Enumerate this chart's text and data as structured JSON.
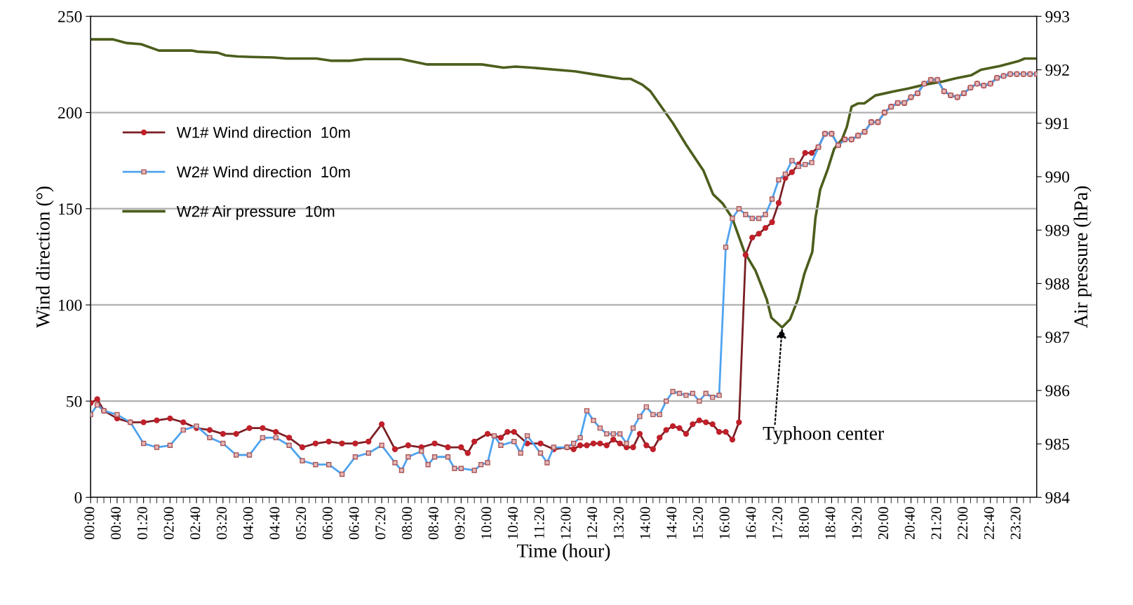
{
  "chart_data": {
    "type": "line",
    "xlabel": "Time (hour)",
    "ylabel": "Wind direction (°)",
    "y2label": "Air pressure (hPa)",
    "xlim": [
      0,
      23.8333
    ],
    "ylim": [
      0,
      250
    ],
    "yticks": [
      0,
      50,
      100,
      150,
      200,
      250
    ],
    "y2lim": [
      984,
      993
    ],
    "y2ticks": [
      984,
      985,
      986,
      987,
      988,
      989,
      990,
      991,
      992,
      993
    ],
    "xticks": [
      {
        "value": 0,
        "label": "00:00"
      },
      {
        "value": 0.6667,
        "label": "00:40"
      },
      {
        "value": 1.3333,
        "label": "01:20"
      },
      {
        "value": 2,
        "label": "02:00"
      },
      {
        "value": 2.6667,
        "label": "02:40"
      },
      {
        "value": 3.3333,
        "label": "03:20"
      },
      {
        "value": 4,
        "label": "04:00"
      },
      {
        "value": 4.6667,
        "label": "04:40"
      },
      {
        "value": 5.3333,
        "label": "05:20"
      },
      {
        "value": 6,
        "label": "06:00"
      },
      {
        "value": 6.6667,
        "label": "06:40"
      },
      {
        "value": 7.3333,
        "label": "07:20"
      },
      {
        "value": 8,
        "label": "08:00"
      },
      {
        "value": 8.6667,
        "label": "08:40"
      },
      {
        "value": 9.3333,
        "label": "09:20"
      },
      {
        "value": 10,
        "label": "10:00"
      },
      {
        "value": 10.6667,
        "label": "10:40"
      },
      {
        "value": 11.3333,
        "label": "11:20"
      },
      {
        "value": 12,
        "label": "12:00"
      },
      {
        "value": 12.6667,
        "label": "12:40"
      },
      {
        "value": 13.3333,
        "label": "13:20"
      },
      {
        "value": 14,
        "label": "14:00"
      },
      {
        "value": 14.6667,
        "label": "14:40"
      },
      {
        "value": 15.3333,
        "label": "15:20"
      },
      {
        "value": 16,
        "label": "16:00"
      },
      {
        "value": 16.6667,
        "label": "16:40"
      },
      {
        "value": 17.3333,
        "label": "17:20"
      },
      {
        "value": 18,
        "label": "18:00"
      },
      {
        "value": 18.6667,
        "label": "18:40"
      },
      {
        "value": 19.3333,
        "label": "19:20"
      },
      {
        "value": 20,
        "label": "20:00"
      },
      {
        "value": 20.6667,
        "label": "20:40"
      },
      {
        "value": 21.3333,
        "label": "21:20"
      },
      {
        "value": 22,
        "label": "22:00"
      },
      {
        "value": 22.6667,
        "label": "22:40"
      },
      {
        "value": 23.3333,
        "label": "23:20"
      }
    ],
    "grid": "y",
    "legend": "left",
    "annotations": [
      {
        "text": "Typhoon center",
        "x": 17.42,
        "y": 88
      }
    ],
    "series": [
      {
        "name": "W1# Wind direction  10m",
        "color": "#7a1f24",
        "marker": "circle",
        "x": [
          0,
          0.1667,
          0.3333,
          0.6667,
          1,
          1.3333,
          1.6667,
          2,
          2.3333,
          2.6667,
          3,
          3.3333,
          3.6667,
          4,
          4.3333,
          4.6667,
          5,
          5.3333,
          5.6667,
          6,
          6.3333,
          6.6667,
          7,
          7.3333,
          7.6667,
          8,
          8.3333,
          8.6667,
          9,
          9.3333,
          9.5,
          9.6667,
          10,
          10.3333,
          10.5,
          10.6667,
          11,
          11.3333,
          11.6667,
          12,
          12.1667,
          12.3333,
          12.5,
          12.6667,
          12.8333,
          13,
          13.1667,
          13.3333,
          13.5,
          13.6667,
          13.8333,
          14,
          14.1667,
          14.3333,
          14.5,
          14.6667,
          14.8333,
          15,
          15.1667,
          15.3333,
          15.5,
          15.6667,
          15.8333,
          16,
          16.1667,
          16.3333,
          16.5,
          16.6667,
          16.8333,
          17,
          17.1667,
          17.3333,
          17.5,
          17.6667,
          17.8333,
          18,
          18.1667,
          18.3333,
          18.5,
          18.6667,
          18.8333,
          19,
          19.1667,
          19.3333,
          19.5,
          19.6667,
          19.8333,
          20,
          20.1667,
          20.3333,
          20.5,
          20.6667,
          20.8333,
          21,
          21.1667,
          21.3333,
          21.5,
          21.6667,
          21.8333,
          22,
          22.1667,
          22.3333,
          22.5,
          22.6667,
          22.8333,
          23,
          23.1667,
          23.3333,
          23.5,
          23.6667,
          23.8333
        ],
        "values": [
          49,
          51,
          45,
          41,
          39,
          39,
          40,
          41,
          39,
          36,
          35,
          33,
          33,
          36,
          36,
          34,
          31,
          26,
          28,
          29,
          28,
          28,
          29,
          38,
          25,
          27,
          26,
          28,
          26,
          26,
          23,
          29,
          33,
          31,
          34,
          34,
          28,
          28,
          25,
          26,
          25,
          27,
          27,
          28,
          28,
          27,
          30,
          28,
          26,
          26,
          33,
          27,
          25,
          31,
          35,
          37,
          36,
          33,
          38,
          40,
          39,
          38,
          34,
          34,
          30,
          39,
          126,
          135,
          137,
          140,
          143,
          153,
          166,
          169,
          173,
          179,
          179,
          182,
          189,
          189,
          183,
          186,
          186,
          188,
          190,
          195,
          195,
          200,
          203,
          205,
          205,
          208,
          210,
          215,
          217,
          217,
          211,
          209,
          208,
          210,
          213,
          215,
          214,
          215,
          218,
          219,
          220,
          220,
          220,
          220,
          220
        ]
      },
      {
        "name": "W2# Wind direction  10m",
        "color": "#4fa3f0",
        "marker": "square",
        "x": [
          0,
          0.1667,
          0.3333,
          0.6667,
          1,
          1.3333,
          1.6667,
          2,
          2.3333,
          2.6667,
          3,
          3.3333,
          3.6667,
          4,
          4.3333,
          4.6667,
          5,
          5.3333,
          5.6667,
          6,
          6.3333,
          6.6667,
          7,
          7.3333,
          7.6667,
          7.8333,
          8,
          8.3333,
          8.5,
          8.6667,
          9,
          9.1667,
          9.3333,
          9.6667,
          9.8333,
          10,
          10.1667,
          10.3333,
          10.6667,
          10.8333,
          11,
          11.3333,
          11.5,
          11.6667,
          12,
          12.1667,
          12.3333,
          12.5,
          12.6667,
          12.8333,
          13,
          13.1667,
          13.3333,
          13.5,
          13.6667,
          13.8333,
          14,
          14.1667,
          14.3333,
          14.5,
          14.6667,
          14.8333,
          15,
          15.1667,
          15.3333,
          15.5,
          15.6667,
          15.8333,
          16,
          16.1667,
          16.3333,
          16.5,
          16.6667,
          16.8333,
          17,
          17.1667,
          17.3333,
          17.5,
          17.6667,
          17.8333,
          18,
          18.1667,
          18.3333,
          18.5,
          18.6667,
          18.8333,
          19,
          19.1667,
          19.3333,
          19.5,
          19.6667,
          19.8333,
          20,
          20.1667,
          20.3333,
          20.5,
          20.6667,
          20.8333,
          21,
          21.1667,
          21.3333,
          21.5,
          21.6667,
          21.8333,
          22,
          22.1667,
          22.3333,
          22.5,
          22.6667,
          22.8333,
          23,
          23.1667,
          23.3333,
          23.5,
          23.6667,
          23.8333
        ],
        "values": [
          43,
          48,
          45,
          43,
          39,
          28,
          26,
          27,
          35,
          37,
          31,
          28,
          22,
          22,
          31,
          31,
          27,
          19,
          17,
          17,
          12,
          21,
          23,
          27,
          18,
          14,
          21,
          24,
          17,
          21,
          21,
          15,
          15,
          14,
          17,
          18,
          32,
          27,
          29,
          23,
          32,
          23,
          18,
          26,
          26,
          28,
          31,
          45,
          40,
          36,
          33,
          33,
          33,
          28,
          36,
          42,
          47,
          43,
          43,
          50,
          55,
          54,
          53,
          54,
          50,
          54,
          52,
          53,
          130,
          145,
          150,
          147,
          145,
          145,
          147,
          155,
          165,
          168,
          175,
          172,
          173,
          174,
          182,
          189,
          189,
          183,
          186,
          186,
          188,
          190,
          195,
          195,
          200,
          203,
          205,
          205,
          208,
          210,
          215,
          217,
          217,
          211,
          209,
          208,
          210,
          213,
          215,
          214,
          215,
          218,
          219,
          220,
          220,
          220,
          220,
          220
        ]
      },
      {
        "name": "W2# Air pressure  10m",
        "color": "#4b5e1c",
        "marker": "none",
        "axis": "y2",
        "x": [
          0,
          0.55,
          0.91,
          1.27,
          1.72,
          2.54,
          2.69,
          3.2,
          3.4,
          3.7,
          4.06,
          4.62,
          4.93,
          5.69,
          6.05,
          6.55,
          6.9,
          7.82,
          8.48,
          9.85,
          10.4,
          10.7,
          11.1,
          12.2,
          12.8,
          13.4,
          13.6,
          13.9,
          14.1,
          14.67,
          15,
          15.44,
          15.68,
          15.92,
          16.16,
          16.47,
          16.75,
          17.03,
          17.15,
          17.42,
          17.62,
          17.82,
          17.98,
          18.18,
          18.26,
          18.38,
          18.57,
          18.73,
          18.93,
          19.05,
          19.17,
          19.33,
          19.49,
          19.77,
          20.2,
          20.6,
          21,
          21.47,
          21.79,
          22.19,
          22.43,
          22.9,
          23.37,
          23.53,
          23.8333
        ],
        "values": [
          992.57,
          992.57,
          992.5,
          992.48,
          992.36,
          992.36,
          992.34,
          992.32,
          992.27,
          992.25,
          992.24,
          992.23,
          992.21,
          992.21,
          992.17,
          992.17,
          992.2,
          992.2,
          992.1,
          992.1,
          992.04,
          992.06,
          992.04,
          991.97,
          991.9,
          991.83,
          991.83,
          991.72,
          991.6,
          991.0,
          990.6,
          990.11,
          989.67,
          989.5,
          989.23,
          988.59,
          988.24,
          987.71,
          987.36,
          987.18,
          987.33,
          987.71,
          988.18,
          988.59,
          989.23,
          989.76,
          990.14,
          990.52,
          990.7,
          990.93,
          991.31,
          991.37,
          991.37,
          991.52,
          991.59,
          991.65,
          991.72,
          991.78,
          991.84,
          991.9,
          992.0,
          992.07,
          992.16,
          992.21,
          992.21
        ]
      }
    ]
  }
}
